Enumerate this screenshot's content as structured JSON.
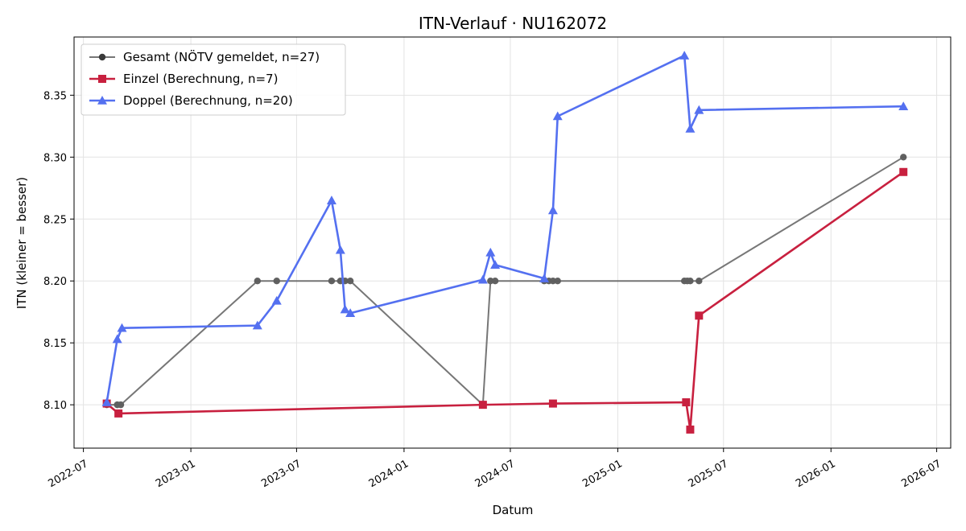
{
  "chart_data": {
    "type": "line",
    "title": "ITN-Verlauf · NU162072",
    "xlabel": "Datum",
    "ylabel": "ITN  (kleiner = besser)",
    "x_type": "date",
    "xlim": [
      "2022-06-15",
      "2026-07-25"
    ],
    "ylim": [
      8.065,
      8.397
    ],
    "x_ticks": [
      "2022-07-01",
      "2023-01-01",
      "2023-07-01",
      "2024-01-01",
      "2024-07-01",
      "2025-01-01",
      "2025-07-01",
      "2026-01-01",
      "2026-07-01"
    ],
    "x_tick_labels": [
      "2022-07",
      "2023-01",
      "2023-07",
      "2024-01",
      "2024-07",
      "2025-01",
      "2025-07",
      "2026-01",
      "2026-07"
    ],
    "y_ticks": [
      8.1,
      8.15,
      8.2,
      8.25,
      8.3,
      8.35
    ],
    "y_tick_labels": [
      "8.10",
      "8.15",
      "8.20",
      "8.25",
      "8.30",
      "8.35"
    ],
    "grid": true,
    "legend_position": "top-left",
    "series": [
      {
        "name": "Gesamt (NÖTV gemeldet, n=27)",
        "color": "#555555",
        "marker": "circle",
        "points": [
          [
            "2022-08-10",
            8.1
          ],
          [
            "2022-08-28",
            8.1
          ],
          [
            "2022-09-03",
            8.1
          ],
          [
            "2023-04-25",
            8.2
          ],
          [
            "2023-05-28",
            8.2
          ],
          [
            "2023-08-30",
            8.2
          ],
          [
            "2023-09-14",
            8.2
          ],
          [
            "2023-09-22",
            8.2
          ],
          [
            "2023-10-01",
            8.2
          ],
          [
            "2024-05-15",
            8.1
          ],
          [
            "2024-05-28",
            8.2
          ],
          [
            "2024-06-05",
            8.2
          ],
          [
            "2024-08-28",
            8.2
          ],
          [
            "2024-09-05",
            8.2
          ],
          [
            "2024-09-12",
            8.2
          ],
          [
            "2024-09-20",
            8.2
          ],
          [
            "2025-04-25",
            8.2
          ],
          [
            "2025-04-30",
            8.2
          ],
          [
            "2025-05-05",
            8.2
          ],
          [
            "2025-05-20",
            8.2
          ],
          [
            "2026-05-05",
            8.3
          ]
        ]
      },
      {
        "name": "Einzel (Berechnung, n=7)",
        "color": "#c8203f",
        "marker": "square",
        "points": [
          [
            "2022-08-10",
            8.101
          ],
          [
            "2022-08-30",
            8.093
          ],
          [
            "2024-05-15",
            8.1
          ],
          [
            "2024-09-12",
            8.101
          ],
          [
            "2025-04-28",
            8.102
          ],
          [
            "2025-05-05",
            8.08
          ],
          [
            "2025-05-20",
            8.172
          ],
          [
            "2026-05-05",
            8.288
          ]
        ]
      },
      {
        "name": "Doppel (Berechnung, n=20)",
        "color": "#5470f0",
        "marker": "triangle",
        "points": [
          [
            "2022-08-10",
            8.102
          ],
          [
            "2022-08-28",
            8.153
          ],
          [
            "2022-09-05",
            8.162
          ],
          [
            "2023-04-25",
            8.164
          ],
          [
            "2023-05-28",
            8.184
          ],
          [
            "2023-08-30",
            8.265
          ],
          [
            "2023-09-14",
            8.225
          ],
          [
            "2023-09-22",
            8.177
          ],
          [
            "2023-10-01",
            8.174
          ],
          [
            "2024-05-15",
            8.201
          ],
          [
            "2024-05-28",
            8.223
          ],
          [
            "2024-06-05",
            8.213
          ],
          [
            "2024-08-28",
            8.202
          ],
          [
            "2024-09-12",
            8.257
          ],
          [
            "2024-09-20",
            8.333
          ],
          [
            "2025-04-25",
            8.382
          ],
          [
            "2025-05-05",
            8.323
          ],
          [
            "2025-05-20",
            8.338
          ],
          [
            "2026-05-05",
            8.341
          ]
        ]
      }
    ]
  }
}
